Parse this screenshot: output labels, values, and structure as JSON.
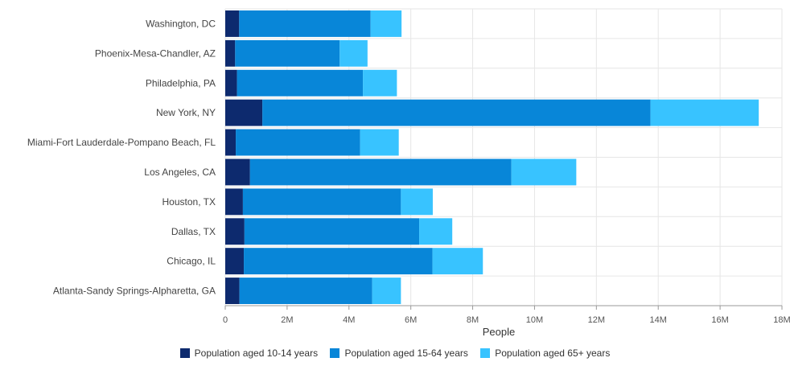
{
  "chart_data": {
    "type": "bar",
    "orientation": "horizontal",
    "stacked": true,
    "title": "",
    "xlabel": "People",
    "ylabel": "",
    "xlim": [
      0,
      18000000
    ],
    "xticks": [
      0,
      2000000,
      4000000,
      6000000,
      8000000,
      10000000,
      12000000,
      14000000,
      16000000,
      18000000
    ],
    "xtick_labels": [
      "0",
      "2M",
      "4M",
      "6M",
      "8M",
      "10M",
      "12M",
      "14M",
      "16M",
      "18M"
    ],
    "grid": true,
    "legend_position": "bottom",
    "categories": [
      "Washington, DC",
      "Phoenix-Mesa-Chandler, AZ",
      "Philadelphia, PA",
      "New York, NY",
      "Miami-Fort Lauderdale-Pompano Beach, FL",
      "Los Angeles, CA",
      "Houston, TX",
      "Dallas, TX",
      "Chicago, IL",
      "Atlanta-Sandy Springs-Alpharetta, GA"
    ],
    "series": [
      {
        "name": "Population aged 10-14 years",
        "color": "#0d2a6e",
        "values": [
          450000,
          320000,
          380000,
          1200000,
          340000,
          800000,
          570000,
          620000,
          600000,
          460000
        ]
      },
      {
        "name": "Population aged 15-64 years",
        "color": "#0886d8",
        "values": [
          4250000,
          3380000,
          4070000,
          12550000,
          4020000,
          8450000,
          5110000,
          5650000,
          6100000,
          4290000
        ]
      },
      {
        "name": "Population aged 65+ years",
        "color": "#38c3ff",
        "values": [
          1000000,
          900000,
          1100000,
          3500000,
          1250000,
          2100000,
          1030000,
          1070000,
          1630000,
          930000
        ]
      }
    ]
  }
}
